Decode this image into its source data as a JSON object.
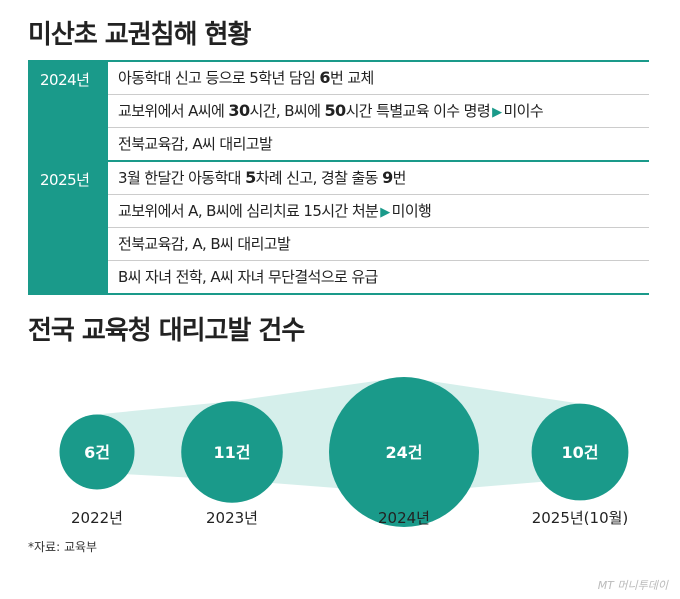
{
  "title1": "미산초 교권침해 현황",
  "timeline": [
    {
      "year": "2024년",
      "items": [
        [
          {
            "t": "아동학대 신고 등으로 5학년 담임 "
          },
          {
            "t": "6",
            "b": true
          },
          {
            "t": "번 교체"
          }
        ],
        [
          {
            "t": "교보위에서 A씨에 "
          },
          {
            "t": "30",
            "b": true
          },
          {
            "t": "시간, B씨에 "
          },
          {
            "t": "50",
            "b": true
          },
          {
            "t": "시간 특별교육 이수 명령"
          },
          {
            "t": "▶",
            "tri": true
          },
          {
            "t": "미이수"
          }
        ],
        [
          {
            "t": "전북교육감, A씨 대리고발"
          }
        ]
      ]
    },
    {
      "year": "2025년",
      "items": [
        [
          {
            "t": "3월 한달간 아동학대 "
          },
          {
            "t": "5",
            "b": true
          },
          {
            "t": "차례 신고, 경찰 출동 "
          },
          {
            "t": "9",
            "b": true
          },
          {
            "t": "번"
          }
        ],
        [
          {
            "t": "교보위에서 A, B씨에 심리치료 15시간 처분"
          },
          {
            "t": "▶",
            "tri": true
          },
          {
            "t": "미이행"
          }
        ],
        [
          {
            "t": "전북교육감, A, B씨 대리고발"
          }
        ],
        [
          {
            "t": "B씨 자녀 전학, A씨 자녀 무단결석으로 유급"
          }
        ]
      ]
    }
  ],
  "chart_data": {
    "type": "bubble",
    "title": "전국 교육청 대리고발 건수",
    "categories": [
      "2022년",
      "2023년",
      "2024년",
      "2025년(10월)"
    ],
    "values": [
      6,
      11,
      24,
      10
    ],
    "value_labels": [
      "6건",
      "11건",
      "24건",
      "10건"
    ],
    "colors": {
      "bubble": "#1a9a8a",
      "band": "#d5efeb",
      "label": "#ffffff"
    }
  },
  "source": "*자료: 교육부",
  "credit": "MT 머니투데이"
}
